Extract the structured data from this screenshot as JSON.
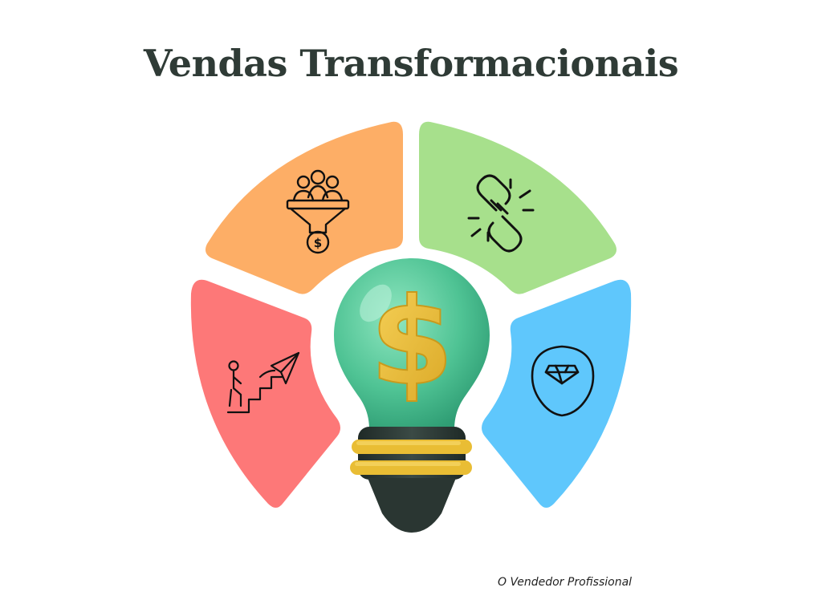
{
  "title": "Vendas Transformacionais",
  "credit": "O Vendedor Profissional",
  "colors": {
    "title": "#2f3b36",
    "top_left": "#fdae66",
    "top_right": "#a7e08c",
    "left": "#fd7878",
    "right": "#5fc7fc",
    "bulb_glass": "#5fcfa0",
    "bulb_base": "#2e3b37",
    "dollar": "#f0c23a",
    "icon_stroke": "#111111"
  },
  "segments": [
    {
      "id": "top-left",
      "icon": "sales-funnel-icon"
    },
    {
      "id": "top-right",
      "icon": "broken-link-icon"
    },
    {
      "id": "left",
      "icon": "stairs-paper-plane-icon"
    },
    {
      "id": "right",
      "icon": "head-diamond-icon"
    }
  ],
  "center": {
    "icon": "lightbulb-dollar-icon"
  }
}
